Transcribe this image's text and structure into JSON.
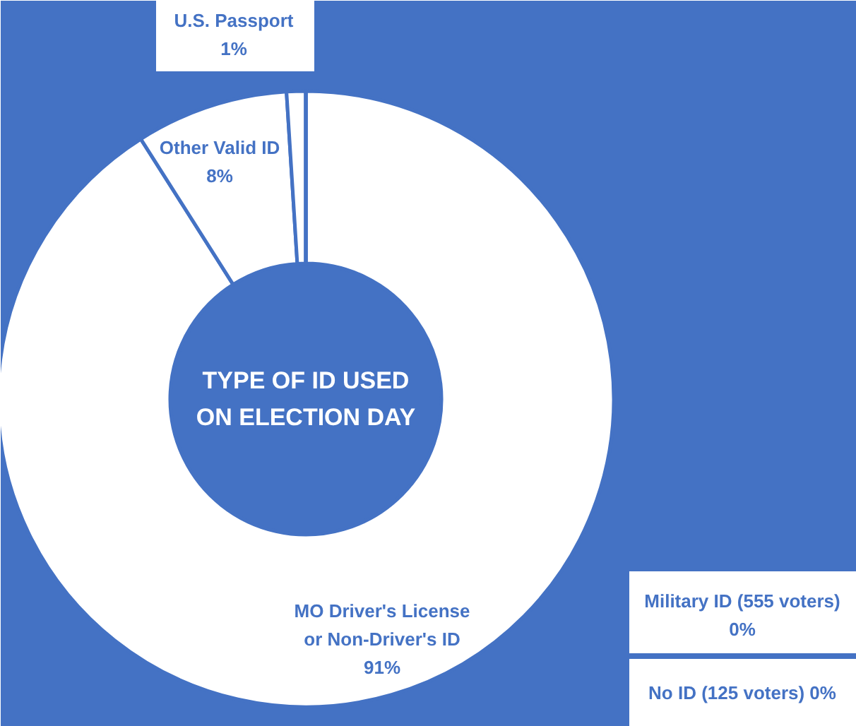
{
  "chart_data": {
    "type": "donut",
    "title": "TYPE OF ID USED\nON ELECTION DAY",
    "categories": [
      "MO Driver's License or Non-Driver's ID",
      "Other Valid ID",
      "U.S. Passport",
      "Military ID (555 voters)",
      "No ID (125 voters)"
    ],
    "values": [
      91,
      8,
      1,
      0,
      0
    ],
    "colors": [
      "#ffffff",
      "#ffffff",
      "#ffffff",
      "#ffffff",
      "#ffffff"
    ],
    "value_labels": [
      "91%",
      "8%",
      "1%",
      "0%",
      "0%"
    ],
    "legend": false
  }
}
